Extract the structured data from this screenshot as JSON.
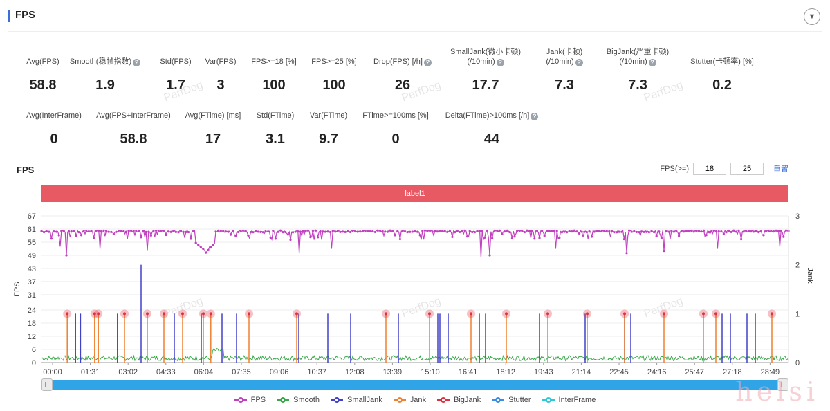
{
  "header": {
    "title": "FPS",
    "collapse_icon": "chevron-down-icon"
  },
  "metrics_row1": [
    {
      "label": "Avg(FPS)",
      "value": "58.8",
      "help": false
    },
    {
      "label": "Smooth(稳帧指数)",
      "value": "1.9",
      "help": true
    },
    {
      "label": "Std(FPS)",
      "value": "1.7",
      "help": false
    },
    {
      "label": "Var(FPS)",
      "value": "3",
      "help": false
    },
    {
      "label": "FPS>=18 [%]",
      "value": "100",
      "help": false
    },
    {
      "label": "FPS>=25 [%]",
      "value": "100",
      "help": false
    },
    {
      "label": "Drop(FPS) [/h]",
      "value": "26",
      "help": true
    },
    {
      "label": "SmallJank(微小卡顿)",
      "label2": "(/10min)",
      "value": "17.7",
      "help": true
    },
    {
      "label": "Jank(卡顿)",
      "label2": "(/10min)",
      "value": "7.3",
      "help": true
    },
    {
      "label": "BigJank(严重卡顿)",
      "label2": "(/10min)",
      "value": "7.3",
      "help": true
    },
    {
      "label": "Stutter(卡顿率) [%]",
      "value": "0.2",
      "help": false
    }
  ],
  "metrics_row2": [
    {
      "label": "Avg(InterFrame)",
      "value": "0",
      "help": false
    },
    {
      "label": "Avg(FPS+InterFrame)",
      "value": "58.8",
      "help": false
    },
    {
      "label": "Avg(FTime) [ms]",
      "value": "17",
      "help": false
    },
    {
      "label": "Std(FTime)",
      "value": "3.1",
      "help": false
    },
    {
      "label": "Var(FTime)",
      "value": "9.7",
      "help": false
    },
    {
      "label": "FTime>=100ms [%]",
      "value": "0",
      "help": false
    },
    {
      "label": "Delta(FTime)>100ms [/h]",
      "value": "44",
      "help": true
    }
  ],
  "watermark": "PerfDog",
  "corner_watermark": "helsi",
  "fps_section": {
    "title": "FPS",
    "filter_label": "FPS(>=)",
    "threshold1": "18",
    "threshold2": "25",
    "reset_label": "重置",
    "band_label": "label1"
  },
  "chart_data": {
    "type": "line",
    "x_ticks": [
      "00:00",
      "01:31",
      "03:02",
      "04:33",
      "06:04",
      "07:35",
      "09:06",
      "10:37",
      "12:08",
      "13:39",
      "15:10",
      "16:41",
      "18:12",
      "19:43",
      "21:14",
      "22:45",
      "24:16",
      "25:47",
      "27:18",
      "28:49"
    ],
    "y_left_label": "FPS",
    "y_left_ticks": [
      0,
      6,
      12,
      18,
      24,
      31,
      37,
      43,
      49,
      55,
      61,
      67
    ],
    "y_left_range": [
      0,
      67
    ],
    "y_right_label": "Jank",
    "y_right_ticks": [
      0,
      1,
      2,
      3
    ],
    "y_right_range": [
      0,
      3
    ],
    "x_range_seconds": [
      0,
      1800
    ],
    "series": [
      {
        "name": "FPS",
        "color": "#c040c0",
        "avg": 58.8
      },
      {
        "name": "Smooth",
        "color": "#3aa84a"
      },
      {
        "name": "SmallJank",
        "color": "#4040c8"
      },
      {
        "name": "Jank",
        "color": "#f08030"
      },
      {
        "name": "BigJank",
        "color": "#e03040"
      },
      {
        "name": "Stutter",
        "color": "#3a8ee8"
      },
      {
        "name": "InterFrame",
        "color": "#30c8d8"
      }
    ],
    "bigjank_times_s": [
      62,
      128,
      137,
      200,
      255,
      295,
      340,
      390,
      408,
      500,
      615,
      830,
      935,
      1035,
      1120,
      1220,
      1315,
      1405,
      1500,
      1595,
      1625,
      1760
    ],
    "smalljank_times_s": [
      82,
      94,
      183,
      240,
      320,
      385,
      435,
      470,
      620,
      690,
      745,
      860,
      955,
      960,
      980,
      1055,
      1070,
      1200,
      1310,
      1405,
      1420,
      1640,
      1660,
      1700,
      1720
    ],
    "fps_dips": [
      [
        45,
        53
      ],
      [
        60,
        49
      ],
      [
        140,
        52
      ],
      [
        255,
        51
      ],
      [
        405,
        53
      ],
      [
        620,
        50
      ],
      [
        700,
        52
      ],
      [
        1058,
        48
      ],
      [
        1080,
        49
      ],
      [
        1240,
        52
      ],
      [
        1410,
        50
      ],
      [
        1500,
        51
      ],
      [
        1630,
        52
      ],
      [
        1780,
        53
      ]
    ]
  },
  "legend": [
    "FPS",
    "Smooth",
    "SmallJank",
    "Jank",
    "BigJank",
    "Stutter",
    "InterFrame"
  ]
}
